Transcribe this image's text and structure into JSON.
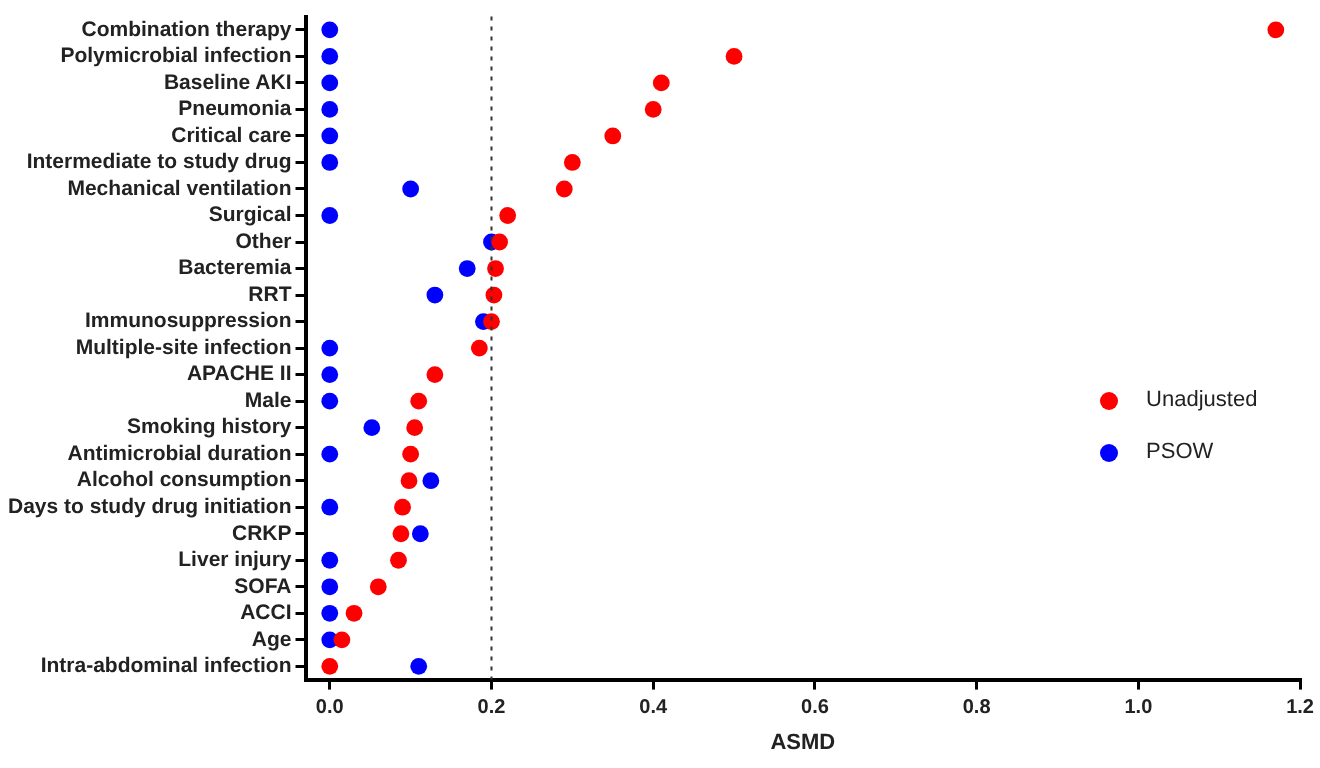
{
  "chart_data": {
    "type": "scatter",
    "xlabel": "ASMD",
    "categories": [
      "Combination therapy",
      "Polymicrobial infection",
      "Baseline AKI",
      "Pneumonia",
      "Critical care",
      "Intermediate to study drug",
      "Mechanical ventilation",
      "Surgical",
      "Other",
      "Bacteremia",
      "RRT",
      "Immunosuppression",
      "Multiple-site infection",
      "APACHE II",
      "Male",
      "Smoking history",
      "Antimicrobial duration",
      "Alcohol consumption",
      "Days to study drug initiation",
      "CRKP",
      "Liver injury",
      "SOFA",
      "ACCI",
      "Age",
      "Intra-abdominal infection"
    ],
    "orientation": "horizontal",
    "series": [
      {
        "name": "Unadjusted",
        "color": "#ff0000",
        "values": [
          1.17,
          0.5,
          0.41,
          0.4,
          0.35,
          0.3,
          0.29,
          0.22,
          0.21,
          0.205,
          0.203,
          0.2,
          0.185,
          0.13,
          0.11,
          0.105,
          0.1,
          0.098,
          0.09,
          0.088,
          0.085,
          0.06,
          0.03,
          0.015,
          0
        ]
      },
      {
        "name": "PSOW",
        "color": "#0000ff",
        "values": [
          0,
          0,
          0,
          0,
          0,
          0,
          0.1,
          0,
          0.2,
          0.17,
          0.13,
          0.19,
          0,
          0,
          0,
          0.052,
          0,
          0.125,
          0,
          0.112,
          0,
          0,
          0,
          0,
          0.11
        ]
      }
    ],
    "xlim": [
      -0.03,
      1.2
    ],
    "xticks": [
      {
        "value": 0,
        "label": "0.0"
      },
      0.2,
      0.4,
      0.6,
      0.8,
      {
        "value": 1,
        "label": "1.0"
      },
      1.2
    ],
    "ref_lines": [
      {
        "axis": "x",
        "value": 0.2,
        "line_style": "dotted",
        "color": "#333333"
      }
    ],
    "grid": false,
    "legend": "right",
    "marker": "circle"
  }
}
